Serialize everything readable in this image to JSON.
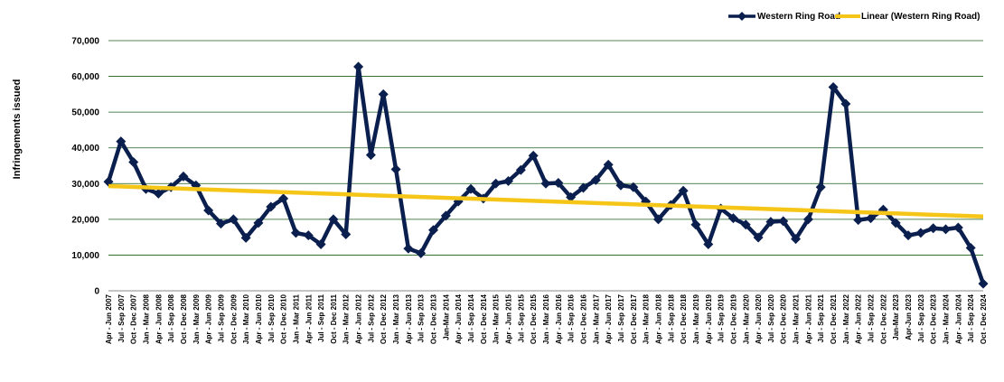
{
  "chart_data": {
    "type": "line",
    "title": "",
    "xlabel": "",
    "ylabel": "Infringements issued",
    "ylim": [
      0,
      70000
    ],
    "yticks": [
      "0",
      "10,000",
      "20,000",
      "30,000",
      "40,000",
      "50,000",
      "60,000",
      "70,000"
    ],
    "grid": true,
    "legend_position": "top-right",
    "colors": {
      "series": "#0b1f4f",
      "trend": "#f5c518",
      "grid": "#1a5c1a"
    },
    "categories": [
      "Apr - Jun 2007",
      "Jul - Sep 2007",
      "Oct - Dec 2007",
      "Jan - Mar 2008",
      "Apr - Jun 2008",
      "Jul - Sep 2008",
      "Oct - Dec 2008",
      "Jan - Mar 2009",
      "Apr - Jun 2009",
      "Jul - Sep 2009",
      "Oct - Dec 2009",
      "Jan - Mar 2010",
      "Apr - Jun 2010",
      "Jul - Sep 2010",
      "Oct - Dec 2010",
      "Jan - Mar 2011",
      "Apr - Jun 2011",
      "Jul - Sep 2011",
      "Oct - Dec 2011",
      "Jan - Mar 2012",
      "Apr - Jun 2012",
      "Jul - Sep 2012",
      "Oct - Dec 2012",
      "Jan - Mar 2013",
      "Apr - Jun 2013",
      "Jul - Sep 2013",
      "Oct - Dec 2013",
      "Jan-Mar 2014",
      "Apr - Jun 2014",
      "Jul - Sep 2014",
      "Oct - Dec 2014",
      "Jan - Mar 2015",
      "Apr - Jun 2015",
      "Jul - Sep 2015",
      "Oct - Dec 2015",
      "Jan - Mar 2016",
      "Apr - Jun 2016",
      "Jul - Sep 2016",
      "Oct - Dec 2016",
      "Jan - Mar 2017",
      "Apr - Jun 2017",
      "Jul - Sep 2017",
      "Oct - Dec 2017",
      "Jan - Mar 2018",
      "Apr - Jun 2018",
      "Jul - Sep 2018",
      "Oct - Dec 2018",
      "Jan - Mar 2019",
      "Apr - Jun 2019",
      "Jul - Sep 2019",
      "Oct - Dec 2019",
      "Jan - Mar 2020",
      "Apr - Jun 2020",
      "Jul - Sep 2020",
      "Oct - Dec 2020",
      "Jan - Mar 2021",
      "Apr - Jun 2021",
      "Jul - Sep 2021",
      "Oct - Dec 2021",
      "Jan - Mar 2022",
      "Apr - Jun 2022",
      "Jul - Sep 2022",
      "Oct - Dec 2022",
      "Jan-Mar 2023",
      "Apr-Jun 2023",
      "Jul - Sep 2023",
      "Oct - Dec 2023",
      "Jan - Mar 2024",
      "Apr - Jun 2024",
      "Jul - Sep 2024",
      "Oct - Dec 2024"
    ],
    "series": [
      {
        "name": "Western Ring Road",
        "values": [
          30500,
          41800,
          36000,
          28500,
          27200,
          29000,
          32000,
          29500,
          22500,
          18800,
          20000,
          14800,
          19000,
          23500,
          25800,
          16200,
          15500,
          13000,
          20000,
          15800,
          62700,
          38000,
          55000,
          34000,
          11800,
          10500,
          17000,
          21000,
          25000,
          28500,
          25800,
          30000,
          30700,
          33800,
          37800,
          30000,
          30200,
          26200,
          28800,
          31000,
          35300,
          29500,
          29000,
          25000,
          20000,
          24000,
          28000,
          18500,
          13000,
          23000,
          20300,
          18500,
          14900,
          19300,
          19500,
          14500,
          20000,
          29000,
          57000,
          52300,
          19800,
          20300,
          22700,
          19000,
          15500,
          16200,
          17500,
          17200,
          17700,
          12000,
          2000
        ]
      }
    ],
    "trendline": {
      "name": "Linear (Western Ring Road)",
      "start": 29300,
      "end": 20800
    }
  }
}
